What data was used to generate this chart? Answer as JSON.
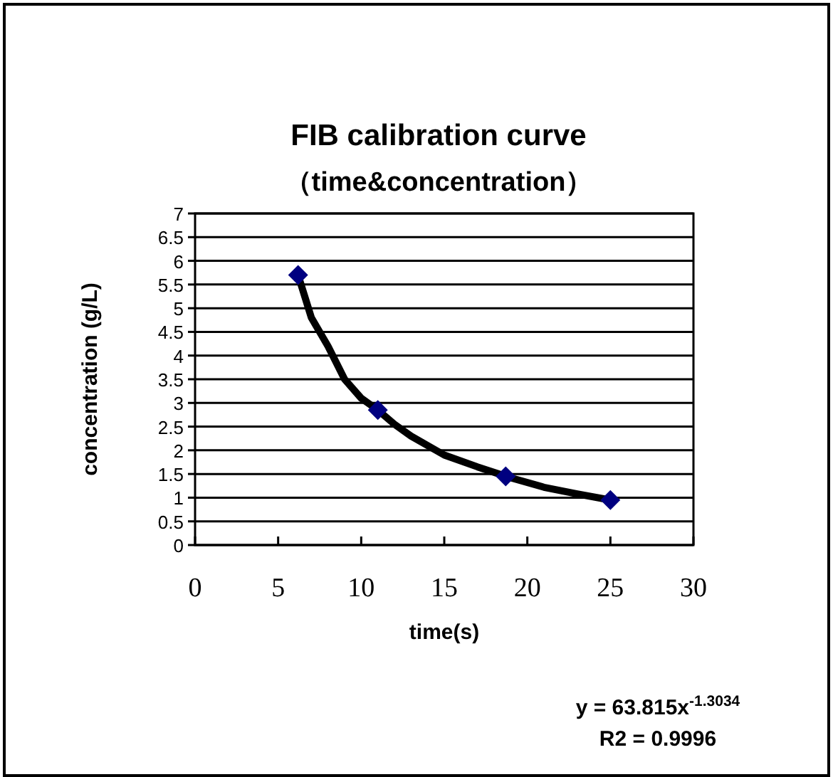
{
  "chart_data": {
    "type": "scatter",
    "title": "FIB calibration curve",
    "subtitle": "（time&concentration）",
    "xlabel": "time(s)",
    "ylabel": "concentration (g/L)",
    "xlim": [
      0,
      30
    ],
    "xticks": [
      0,
      5,
      10,
      15,
      20,
      25,
      30
    ],
    "ylim": [
      0,
      7
    ],
    "yticks": [
      0,
      0.5,
      1,
      1.5,
      2,
      2.5,
      3,
      3.5,
      4,
      4.5,
      5,
      5.5,
      6,
      6.5,
      7
    ],
    "grid": "y",
    "annotations": [
      "y = 63.815x$^{-1.3034}$",
      "R2 = 0.9996"
    ],
    "series": [
      {
        "marker": "diamond",
        "color": "#000080",
        "x": [
          6.2,
          11,
          18.7,
          25
        ],
        "values": [
          5.7,
          2.85,
          1.45,
          0.95
        ]
      },
      {
        "type": "line",
        "marker": "none",
        "color": "#000000",
        "x": [
          6.2,
          7,
          8,
          9,
          10,
          11,
          12,
          13,
          15,
          17,
          19,
          21,
          23,
          25
        ],
        "values": [
          5.7,
          4.8,
          4.2,
          3.5,
          3.1,
          2.85,
          2.55,
          2.3,
          1.9,
          1.65,
          1.42,
          1.22,
          1.08,
          0.95
        ]
      }
    ]
  }
}
